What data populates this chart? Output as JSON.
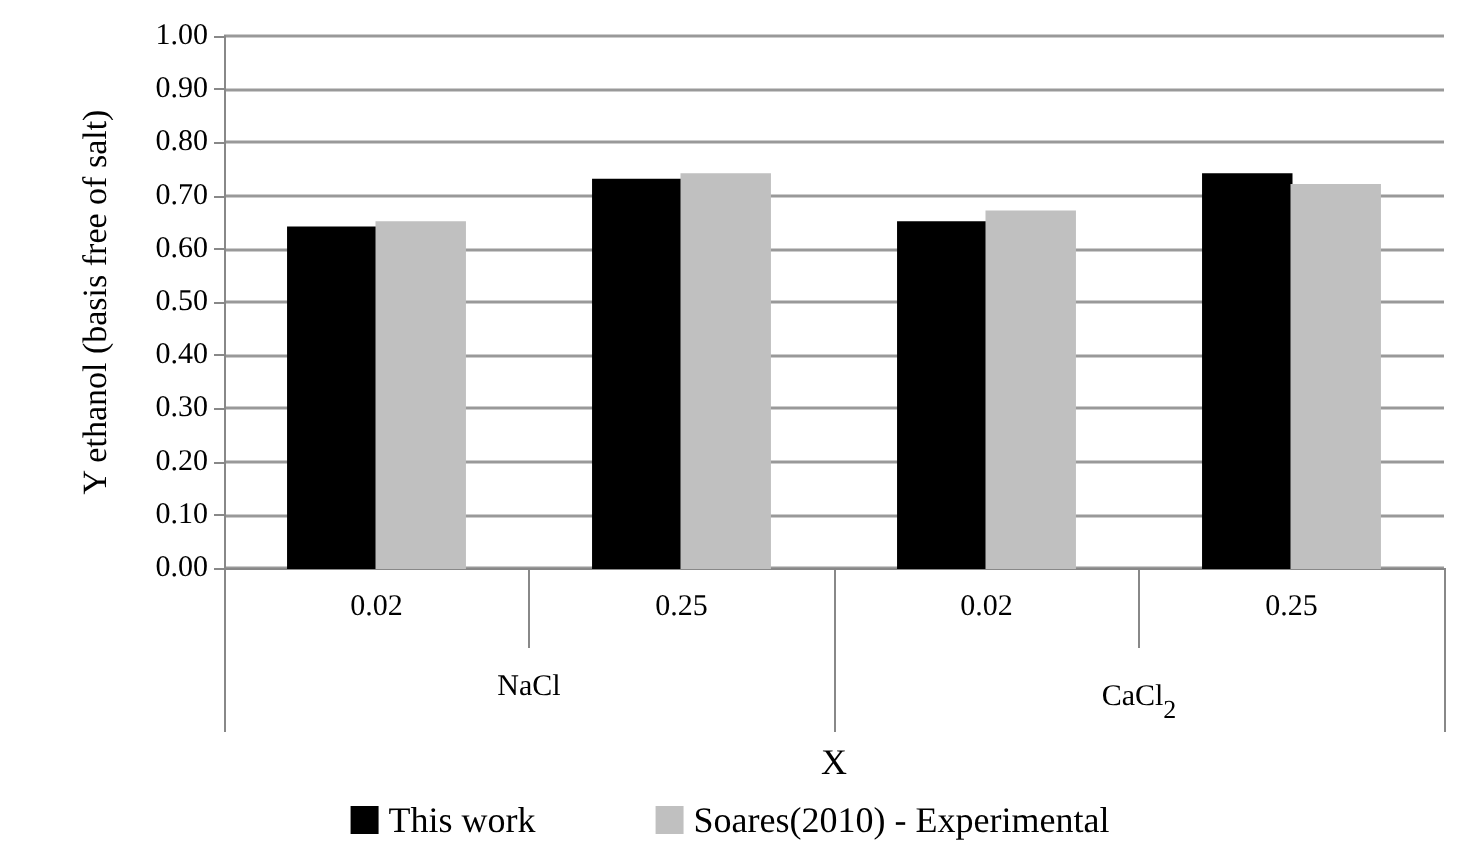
{
  "chart_data": {
    "type": "bar",
    "xlabel": "X",
    "ylabel": "Y ethanol (basis free of salt)",
    "categories": [
      "0.02",
      "0.25",
      "0.02",
      "0.25"
    ],
    "annotations": [
      "NaCl",
      "CaCl$_{2}$"
    ],
    "series": [
      {
        "name": "This work",
        "color": "#000000",
        "values": [
          0.64,
          0.73,
          0.65,
          0.74
        ]
      },
      {
        "name": "Soares(2010) - Experimental",
        "color": "#c0c0c0",
        "values": [
          0.65,
          0.74,
          0.67,
          0.72
        ]
      }
    ],
    "ylim": [
      0,
      1
    ],
    "yticks": [
      {
        "value": 0,
        "label": "0.00"
      },
      {
        "value": 0.1,
        "label": "0.10"
      },
      {
        "value": 0.2,
        "label": "0.20"
      },
      {
        "value": 0.3,
        "label": "0.30"
      },
      {
        "value": 0.4,
        "label": "0.40"
      },
      {
        "value": 0.5,
        "label": "0.50"
      },
      {
        "value": 0.6,
        "label": "0.60"
      },
      {
        "value": 0.7,
        "label": "0.70"
      },
      {
        "value": 0.8,
        "label": "0.80"
      },
      {
        "value": 0.9,
        "label": "0.90"
      },
      {
        "value": 1,
        "label": "1.00"
      }
    ],
    "grid": "y",
    "legend": "bottom"
  }
}
